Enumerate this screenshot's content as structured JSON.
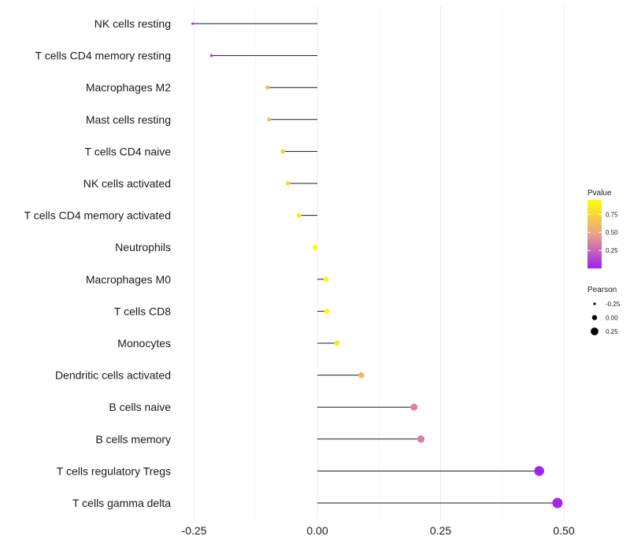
{
  "chart_data": {
    "type": "scatter",
    "subtype": "lollipop",
    "title": "",
    "xlabel": "",
    "ylabel": "",
    "xlim": [
      -0.27,
      0.52
    ],
    "x_ticks": [
      -0.25,
      0.0,
      0.25,
      0.5
    ],
    "x_tick_labels": [
      "-0.25",
      "0.00",
      "0.25",
      "0.50"
    ],
    "grid": true,
    "categories": [
      "NK cells resting",
      "T cells CD4 memory resting",
      "Macrophages M2",
      "Mast cells resting",
      "T cells CD4 naive",
      "NK cells activated",
      "T cells CD4 memory activated",
      "Neutrophils",
      "Macrophages M0",
      "T cells CD8",
      "Monocytes",
      "Dendritic cells activated",
      "B cells naive",
      "B cells memory",
      "T cells regulatory  Tregs",
      "T cells gamma delta"
    ],
    "pearson": [
      -0.253,
      -0.215,
      -0.101,
      -0.098,
      -0.07,
      -0.06,
      -0.037,
      -0.005,
      0.018,
      0.019,
      0.04,
      0.089,
      0.196,
      0.21,
      0.45,
      0.487
    ],
    "pvalue": [
      0.05,
      0.1,
      0.6,
      0.62,
      0.72,
      0.78,
      0.85,
      0.95,
      0.92,
      0.92,
      0.85,
      0.6,
      0.38,
      0.35,
      0.01,
      0.01
    ],
    "legend": {
      "position": "right",
      "color": {
        "title": "Pvalue",
        "ticks": [
          0.25,
          0.5,
          0.75
        ],
        "tick_labels": [
          "0.25",
          "0.50",
          "0.75"
        ],
        "range": [
          0.0,
          0.95
        ],
        "low_color": "#a020f0",
        "mid_color": "#e9a08a",
        "high_color": "#ffff00"
      },
      "size": {
        "title": "Pearson",
        "values": [
          -0.25,
          0.0,
          0.25
        ],
        "labels": [
          "-0.25",
          "0.00",
          "0.25"
        ]
      }
    }
  }
}
